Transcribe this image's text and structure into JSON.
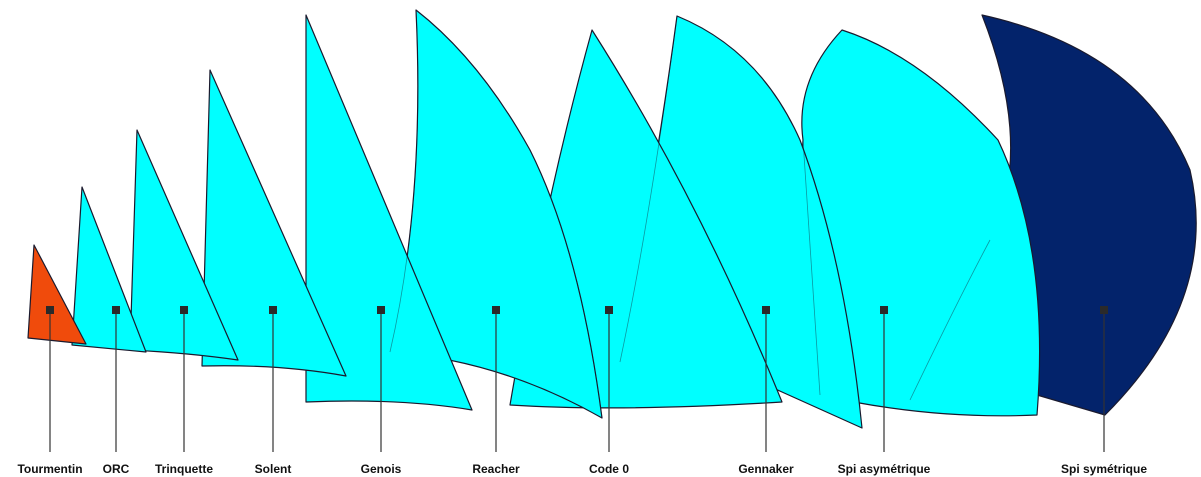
{
  "colors": {
    "storm_sail": "#f04b0c",
    "headsail": "#00ffff",
    "spinnaker_symmetric": "#03236b"
  },
  "sails": [
    {
      "id": "tourmentin",
      "label": "Tourmentin",
      "color": "#f04b0c"
    },
    {
      "id": "orc",
      "label": "ORC",
      "color": "#00ffff"
    },
    {
      "id": "trinquette",
      "label": "Trinquette",
      "color": "#00ffff"
    },
    {
      "id": "solent",
      "label": "Solent",
      "color": "#00ffff"
    },
    {
      "id": "genois",
      "label": "Genois",
      "color": "#00ffff"
    },
    {
      "id": "reacher",
      "label": "Reacher",
      "color": "#00ffff"
    },
    {
      "id": "code0",
      "label": "Code 0",
      "color": "#00ffff"
    },
    {
      "id": "gennaker",
      "label": "Gennaker",
      "color": "#00ffff"
    },
    {
      "id": "spi-asymetrique",
      "label": "Spi asymétrique",
      "color": "#00ffff"
    },
    {
      "id": "spi-symetrique",
      "label": "Spi symétrique",
      "color": "#03236b"
    }
  ]
}
